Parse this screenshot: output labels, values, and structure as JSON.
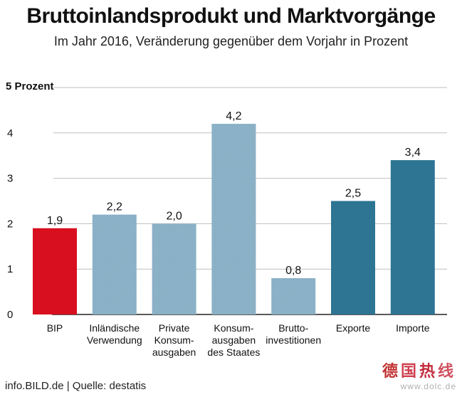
{
  "watermark": {
    "logo": "德国热线",
    "url": "www.dolc.de"
  },
  "footer": {
    "text": "info.BILD.de | Quelle: destatis"
  },
  "colors": {
    "bip": "#d80f1e",
    "inland": "#8db3c8",
    "export": "#2d7593",
    "grid": "#bfbfbf",
    "baseline": "#222222"
  },
  "chart_data": {
    "type": "bar",
    "title": "Bruttoinlandsprodukt und Marktvorgänge",
    "subtitle": "Im Jahr 2016, Veränderung gegenüber dem Vorjahr in Prozent",
    "ylabel": "5 Prozent",
    "xlabel": "",
    "ylim": [
      0,
      5
    ],
    "yticks": [
      "0",
      "1",
      "2",
      "3",
      "4"
    ],
    "grid": true,
    "categories": [
      [
        "BIP"
      ],
      [
        "Inländische",
        "Verwendung"
      ],
      [
        "Private",
        "Konsum-",
        "ausgaben"
      ],
      [
        "Konsum-",
        "ausgaben",
        "des Staates"
      ],
      [
        "Brutto-",
        "investitionen"
      ],
      [
        "Exporte"
      ],
      [
        "Importe"
      ]
    ],
    "values": [
      1.9,
      2.2,
      2.0,
      4.2,
      0.8,
      2.5,
      3.4
    ],
    "value_labels": [
      "1,9",
      "2,2",
      "2,0",
      "4,2",
      "0,8",
      "2,5",
      "3,4"
    ],
    "bar_colors": [
      "bip",
      "inland",
      "inland",
      "inland",
      "inland",
      "export",
      "export"
    ]
  }
}
